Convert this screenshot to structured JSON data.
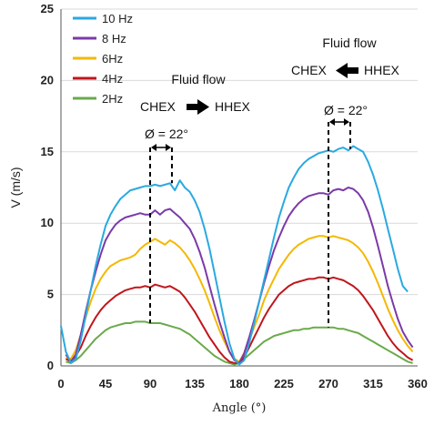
{
  "chart_data": {
    "type": "line",
    "xlabel": "Angle (°)",
    "ylabel": "V (m/s)",
    "xlim": [
      0,
      360
    ],
    "ylim": [
      0,
      25
    ],
    "xticks": [
      0,
      45,
      90,
      135,
      180,
      225,
      270,
      315,
      360
    ],
    "yticks": [
      0,
      5,
      10,
      15,
      20,
      25
    ],
    "grid": "horizontal",
    "legend": "top-left",
    "x": [
      0,
      5,
      10,
      15,
      20,
      25,
      30,
      35,
      40,
      45,
      50,
      55,
      60,
      65,
      70,
      75,
      80,
      85,
      90,
      95,
      100,
      105,
      110,
      115,
      120,
      125,
      130,
      135,
      140,
      145,
      150,
      155,
      160,
      165,
      170,
      175,
      180,
      185,
      190,
      195,
      200,
      205,
      210,
      215,
      220,
      225,
      230,
      235,
      240,
      245,
      250,
      255,
      260,
      265,
      270,
      275,
      280,
      285,
      290,
      295,
      300,
      305,
      310,
      315,
      320,
      325,
      330,
      335,
      340,
      345,
      350,
      355,
      360
    ],
    "series": [
      {
        "name": "10 Hz",
        "color": "#2aa9e0",
        "values": [
          2.8,
          1.0,
          0.2,
          0.5,
          1.8,
          3.5,
          5.3,
          7.0,
          8.5,
          9.8,
          10.6,
          11.2,
          11.7,
          12.0,
          12.3,
          12.4,
          12.5,
          12.6,
          12.6,
          12.7,
          12.6,
          12.7,
          12.8,
          12.3,
          13.0,
          12.5,
          12.2,
          11.6,
          10.8,
          9.6,
          8.2,
          6.5,
          4.8,
          3.1,
          1.6,
          0.5,
          0.1,
          0.4,
          1.6,
          3.0,
          4.5,
          6.0,
          7.5,
          9.0,
          10.4,
          11.5,
          12.5,
          13.2,
          13.8,
          14.2,
          14.5,
          14.7,
          14.9,
          15.0,
          15.1,
          15.0,
          15.2,
          15.3,
          15.1,
          15.4,
          15.2,
          15.0,
          14.3,
          13.4,
          12.3,
          11.0,
          9.6,
          8.2,
          6.8,
          5.6,
          5.2,
          null,
          null
        ]
      },
      {
        "name": "8 Hz",
        "color": "#7b3aa8",
        "values": [
          null,
          0.8,
          0.3,
          0.8,
          2.2,
          3.8,
          5.3,
          6.6,
          7.8,
          8.8,
          9.4,
          9.9,
          10.2,
          10.4,
          10.5,
          10.6,
          10.7,
          10.6,
          10.6,
          10.9,
          10.6,
          10.9,
          11.0,
          10.7,
          10.4,
          10.0,
          9.6,
          8.9,
          8.0,
          6.9,
          5.6,
          4.3,
          3.1,
          2.0,
          1.0,
          0.4,
          0.2,
          0.9,
          2.0,
          3.2,
          4.5,
          5.8,
          7.0,
          8.1,
          9.0,
          9.8,
          10.5,
          11.0,
          11.4,
          11.7,
          11.9,
          12.0,
          12.1,
          12.1,
          12.0,
          12.3,
          12.4,
          12.3,
          12.5,
          12.4,
          12.1,
          11.6,
          10.8,
          9.7,
          8.4,
          7.0,
          5.6,
          4.4,
          3.3,
          2.4,
          1.8,
          1.3,
          null
        ]
      },
      {
        "name": "6Hz",
        "color": "#f5b800",
        "values": [
          null,
          0.6,
          0.5,
          1.1,
          2.2,
          3.4,
          4.5,
          5.4,
          6.1,
          6.6,
          7.0,
          7.2,
          7.4,
          7.5,
          7.6,
          7.8,
          8.2,
          8.5,
          8.7,
          8.9,
          8.7,
          8.5,
          8.8,
          8.6,
          8.3,
          7.9,
          7.4,
          6.8,
          6.1,
          5.3,
          4.4,
          3.4,
          2.5,
          1.7,
          1.0,
          0.5,
          0.3,
          0.9,
          1.8,
          2.7,
          3.6,
          4.6,
          5.4,
          6.1,
          6.8,
          7.3,
          7.8,
          8.2,
          8.5,
          8.7,
          8.9,
          9.0,
          9.1,
          9.1,
          9.0,
          9.1,
          9.0,
          8.9,
          8.8,
          8.6,
          8.3,
          7.9,
          7.3,
          6.6,
          5.8,
          4.9,
          4.0,
          3.2,
          2.5,
          1.9,
          1.4,
          1.0,
          null
        ]
      },
      {
        "name": "4Hz",
        "color": "#c0161c",
        "values": [
          null,
          0.5,
          0.3,
          0.7,
          1.3,
          2.1,
          2.8,
          3.4,
          3.9,
          4.3,
          4.6,
          4.9,
          5.1,
          5.3,
          5.4,
          5.5,
          5.5,
          5.6,
          5.5,
          5.7,
          5.6,
          5.5,
          5.6,
          5.4,
          5.2,
          4.8,
          4.3,
          3.8,
          3.2,
          2.6,
          2.0,
          1.5,
          1.0,
          0.6,
          0.3,
          0.2,
          0.2,
          0.6,
          1.3,
          2.0,
          2.7,
          3.4,
          4.0,
          4.5,
          5.0,
          5.3,
          5.6,
          5.8,
          5.9,
          6.0,
          6.1,
          6.1,
          6.2,
          6.2,
          6.1,
          6.2,
          6.1,
          6.0,
          5.8,
          5.6,
          5.3,
          4.9,
          4.4,
          3.9,
          3.3,
          2.7,
          2.1,
          1.6,
          1.2,
          0.9,
          0.6,
          0.4,
          null
        ]
      },
      {
        "name": "2Hz",
        "color": "#6aaa4a",
        "values": [
          null,
          0.3,
          0.2,
          0.4,
          0.7,
          1.1,
          1.5,
          1.9,
          2.2,
          2.5,
          2.7,
          2.8,
          2.9,
          3.0,
          3.0,
          3.1,
          3.1,
          3.1,
          3.0,
          3.0,
          3.0,
          2.9,
          2.8,
          2.7,
          2.6,
          2.4,
          2.2,
          1.9,
          1.6,
          1.3,
          1.0,
          0.7,
          0.5,
          0.3,
          0.2,
          0.1,
          0.2,
          0.5,
          0.8,
          1.1,
          1.4,
          1.7,
          1.9,
          2.1,
          2.2,
          2.3,
          2.4,
          2.5,
          2.5,
          2.6,
          2.6,
          2.7,
          2.7,
          2.7,
          2.7,
          2.7,
          2.6,
          2.6,
          2.5,
          2.4,
          2.3,
          2.1,
          1.9,
          1.7,
          1.5,
          1.3,
          1.1,
          0.9,
          0.7,
          0.5,
          0.3,
          0.2,
          null
        ]
      }
    ],
    "annotations": {
      "left_title": "Fluid flow",
      "left_from": "CHEX",
      "left_to": "HHEX",
      "left_phase": "Ø = 22°",
      "right_title": "Fluid flow",
      "right_from": "CHEX",
      "right_to": "HHEX",
      "right_phase": "Ø = 22°"
    }
  }
}
